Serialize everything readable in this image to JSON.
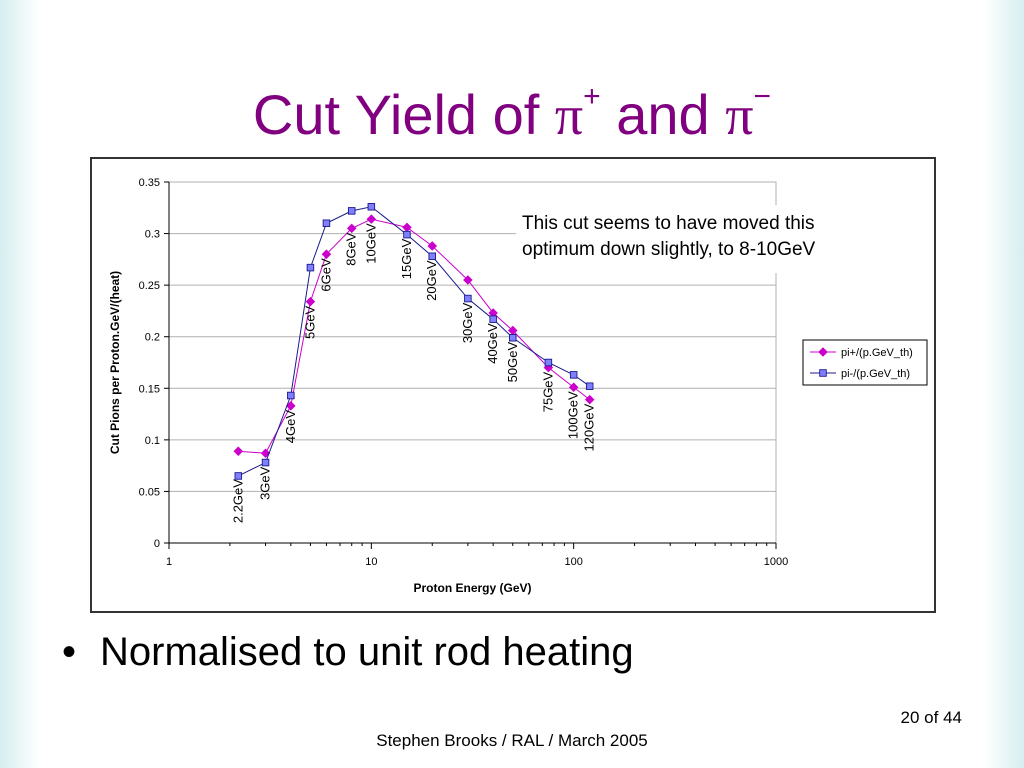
{
  "slide": {
    "title_prefix": "Cut Yield of ",
    "pi": "π",
    "plus": "+",
    "and": " and ",
    "minus": "−",
    "bullet_symbol": "•",
    "bullet": "Normalised to unit rod heating",
    "footer": "Stephen Brooks / RAL / March 2005",
    "page": "20 of 44"
  },
  "colors": {
    "title": "#800080",
    "series_plus": "#cc00cc",
    "series_minus": "#1a1a8c",
    "marker_minus_fill": "#8080ff"
  },
  "chart_data": {
    "type": "line",
    "xlabel": "Proton Energy (GeV)",
    "ylabel": "Cut Pions per Proton.GeV/(heat)",
    "x_scale": "log",
    "xlim": [
      1,
      1000
    ],
    "ylim": [
      0,
      0.35
    ],
    "x_ticks": [
      1,
      10,
      100,
      1000
    ],
    "x_tick_labels": [
      "1",
      "10",
      "100",
      "1000"
    ],
    "y_ticks": [
      0,
      0.05,
      0.1,
      0.15,
      0.2,
      0.25,
      0.3,
      0.35
    ],
    "y_tick_labels": [
      "0",
      "0.05",
      "0.1",
      "0.15",
      "0.2",
      "0.25",
      "0.3",
      "0.35"
    ],
    "grid": "horizontal",
    "legend_position": "right",
    "x": [
      2.2,
      3,
      4,
      5,
      6,
      8,
      10,
      15,
      20,
      30,
      40,
      50,
      75,
      100,
      120
    ],
    "series": [
      {
        "name": "pi+/(p.GeV_th)",
        "marker": "diamond",
        "values": [
          0.089,
          0.087,
          0.133,
          0.234,
          0.28,
          0.305,
          0.314,
          0.306,
          0.288,
          0.255,
          0.223,
          0.206,
          0.17,
          0.151,
          0.139
        ]
      },
      {
        "name": "pi-/(p.GeV_th)",
        "marker": "square",
        "values": [
          0.065,
          0.078,
          0.143,
          0.267,
          0.31,
          0.322,
          0.326,
          0.299,
          0.278,
          0.237,
          0.217,
          0.199,
          0.175,
          0.163,
          0.152
        ]
      }
    ],
    "point_labels": [
      {
        "x": 2.2,
        "y": 0.062,
        "text": "2.2GeV"
      },
      {
        "x": 3,
        "y": 0.074,
        "text": "3GeV"
      },
      {
        "x": 4,
        "y": 0.129,
        "text": "4GeV"
      },
      {
        "x": 5,
        "y": 0.23,
        "text": "5GeV"
      },
      {
        "x": 6,
        "y": 0.276,
        "text": "6GeV"
      },
      {
        "x": 8,
        "y": 0.301,
        "text": "8GeV"
      },
      {
        "x": 10,
        "y": 0.31,
        "text": "10GeV"
      },
      {
        "x": 15,
        "y": 0.295,
        "text": "15GeV"
      },
      {
        "x": 20,
        "y": 0.274,
        "text": "20GeV"
      },
      {
        "x": 30,
        "y": 0.233,
        "text": "30GeV"
      },
      {
        "x": 40,
        "y": 0.213,
        "text": "40GeV"
      },
      {
        "x": 50,
        "y": 0.195,
        "text": "50GeV"
      },
      {
        "x": 75,
        "y": 0.166,
        "text": "75GeV"
      },
      {
        "x": 100,
        "y": 0.147,
        "text": "100GeV"
      },
      {
        "x": 120,
        "y": 0.135,
        "text": "120GeV"
      }
    ],
    "annotation": [
      "This cut seems to have moved this",
      "optimum down slightly, to 8-10GeV"
    ]
  }
}
